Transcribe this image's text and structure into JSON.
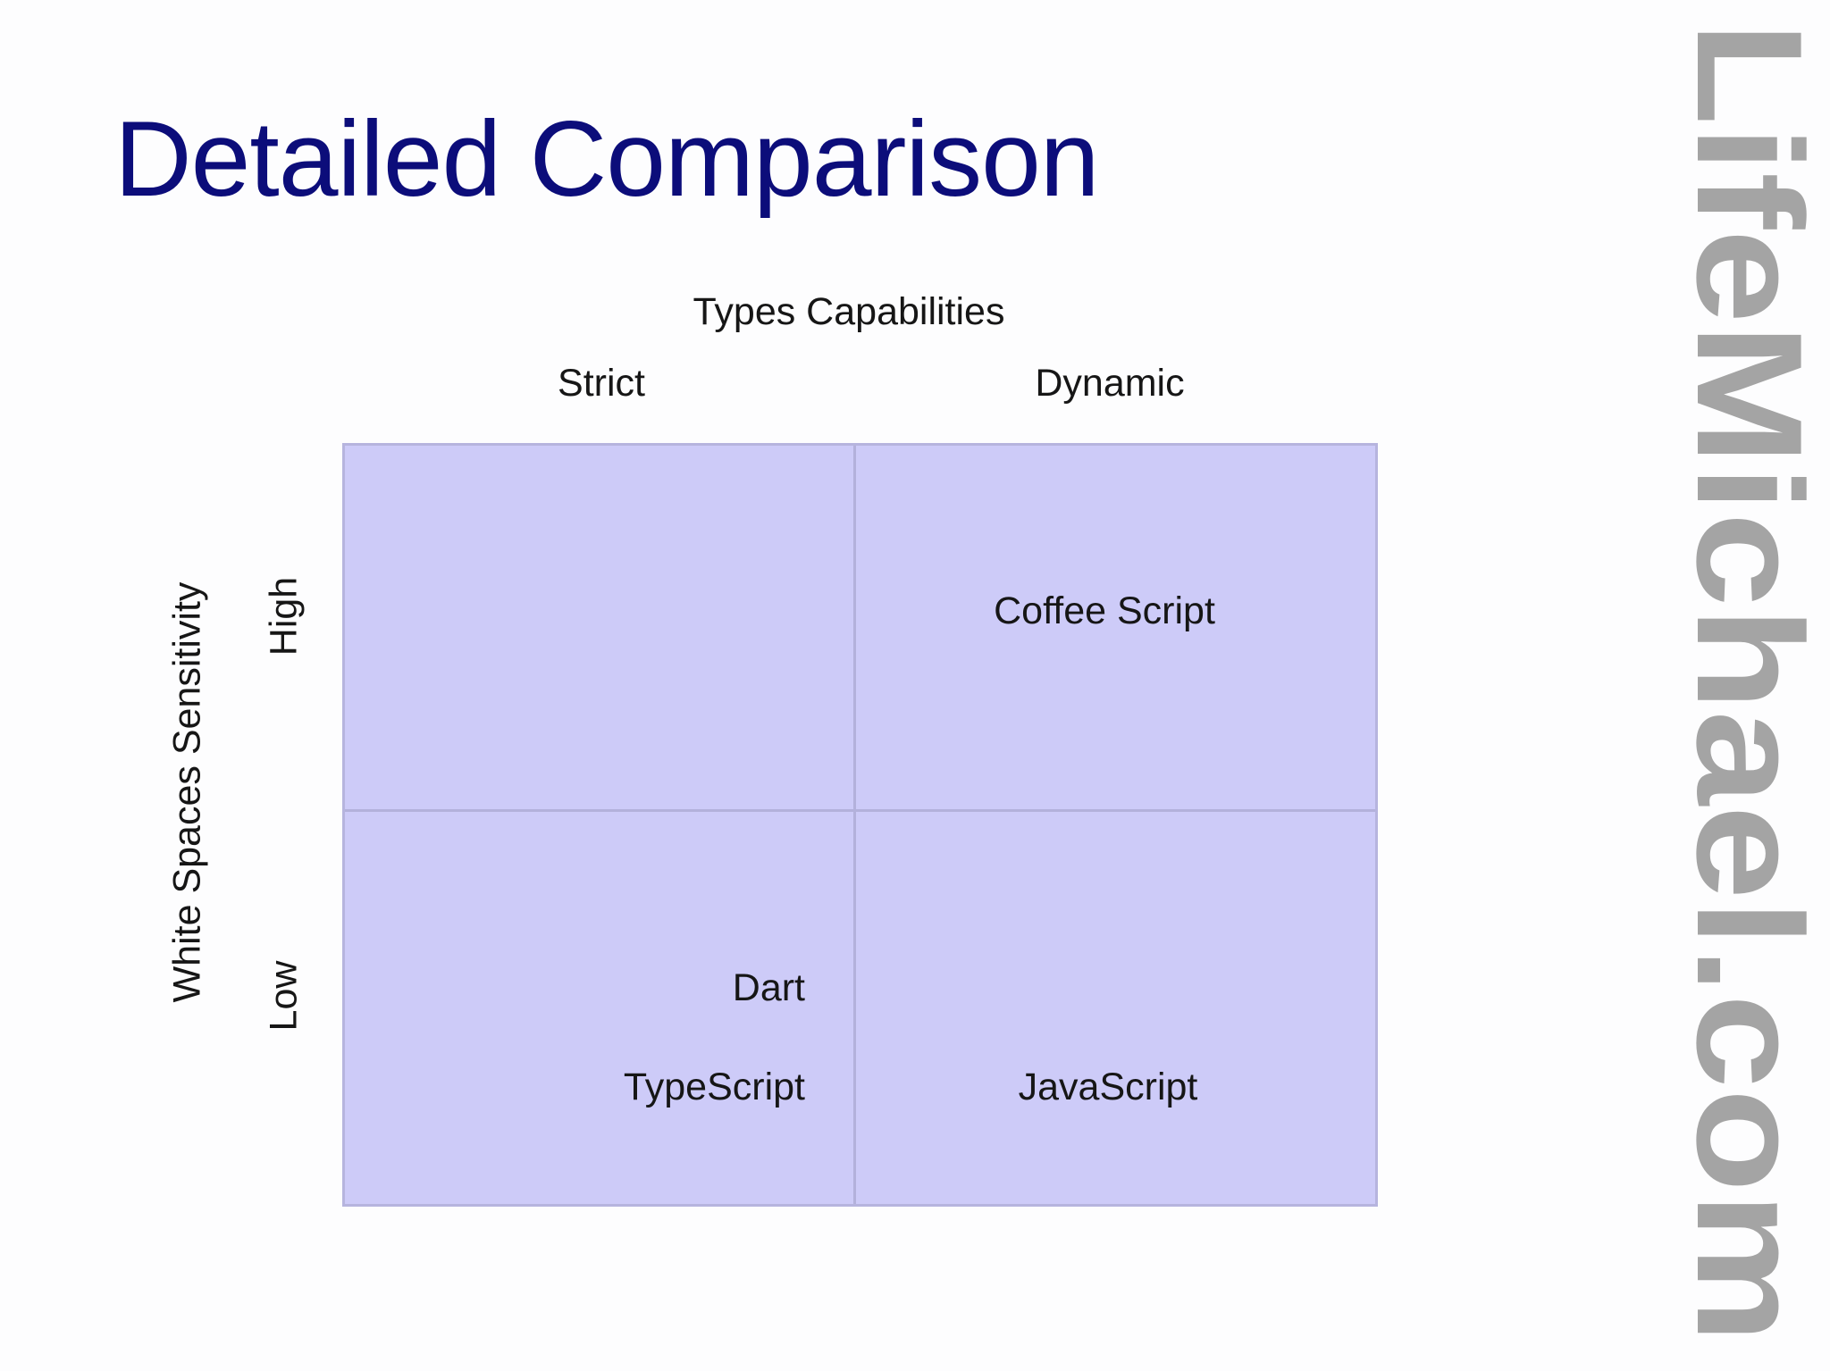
{
  "slide": {
    "title": "Detailed Comparison"
  },
  "watermark": {
    "text": "LifeMichael.com"
  },
  "diagram": {
    "x_axis_title": "Types Capabilities",
    "columns": [
      "Strict",
      "Dynamic"
    ],
    "y_axis_title": "White Spaces Sensitivity",
    "rows": [
      "High",
      "Low"
    ],
    "cells": {
      "high_dynamic": [
        "Coffee Script"
      ],
      "low_strict": [
        "Dart",
        "TypeScript"
      ],
      "low_dynamic": [
        "JavaScript"
      ]
    },
    "colors": {
      "cell_fill": "#cdcbf8",
      "cell_border": "#b6b4de",
      "title": "#0c0d7a",
      "watermark": "#a4a4a4"
    }
  }
}
